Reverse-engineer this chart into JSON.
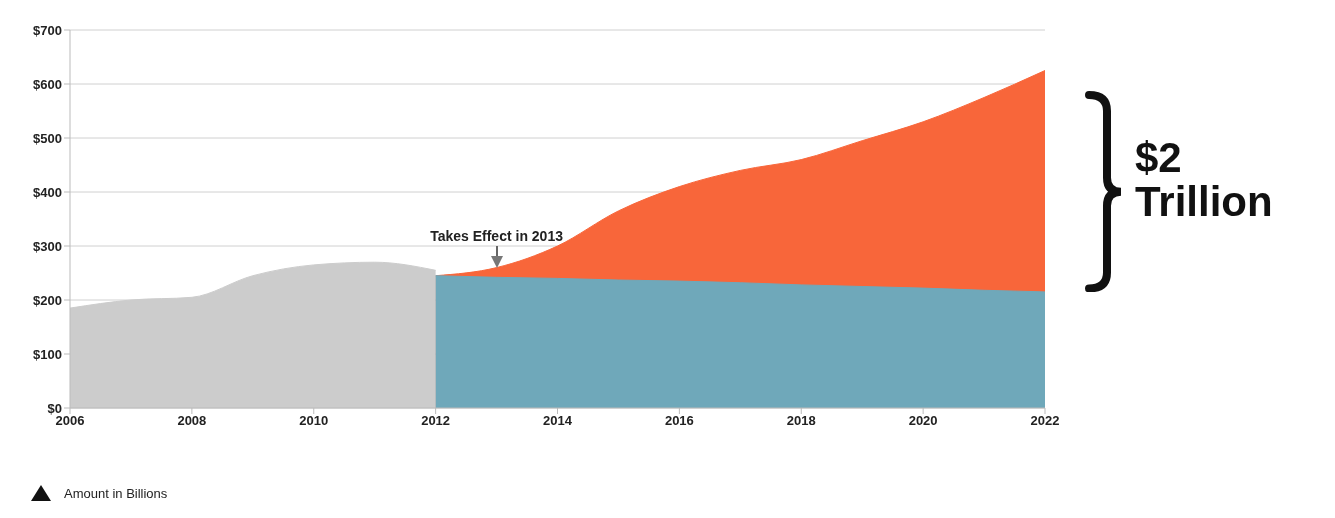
{
  "chart_data": {
    "type": "area",
    "x": [
      2006,
      2007,
      2008,
      2009,
      2010,
      2011,
      2012,
      2013,
      2014,
      2015,
      2016,
      2017,
      2018,
      2019,
      2020,
      2021,
      2022
    ],
    "series": [
      {
        "color": "#f8663a",
        "values": [
          null,
          null,
          null,
          null,
          null,
          null,
          245,
          260,
          300,
          365,
          410,
          440,
          460,
          495,
          530,
          575,
          625
        ]
      },
      {
        "color": "#cccccc",
        "values": [
          185,
          200,
          205,
          245,
          265,
          270,
          255,
          null,
          null,
          null,
          null,
          null,
          null,
          null,
          null,
          null,
          null
        ]
      },
      {
        "color": "#6fa8ba",
        "values": [
          null,
          null,
          null,
          null,
          null,
          null,
          245,
          242,
          240,
          237,
          235,
          232,
          228,
          225,
          222,
          218,
          215
        ]
      }
    ],
    "ylim": [
      0,
      700
    ],
    "yticks": [
      {
        "value": 0,
        "label": "$0"
      },
      {
        "value": 100,
        "label": "$100"
      },
      {
        "value": 200,
        "label": "$200"
      },
      {
        "value": 300,
        "label": "$300"
      },
      {
        "value": 400,
        "label": "$400"
      },
      {
        "value": 500,
        "label": "$500"
      },
      {
        "value": 600,
        "label": "$600"
      },
      {
        "value": 700,
        "label": "$700"
      }
    ],
    "xlim": [
      2006,
      2022
    ],
    "xticks": [
      2006,
      2008,
      2010,
      2012,
      2014,
      2016,
      2018,
      2020,
      2022
    ],
    "grid": "y",
    "annotations": [
      {
        "text": "Takes Effect in 2013",
        "x": 2013,
        "y": 260
      },
      "$2 Trillion",
      "Amount in Billions"
    ]
  }
}
